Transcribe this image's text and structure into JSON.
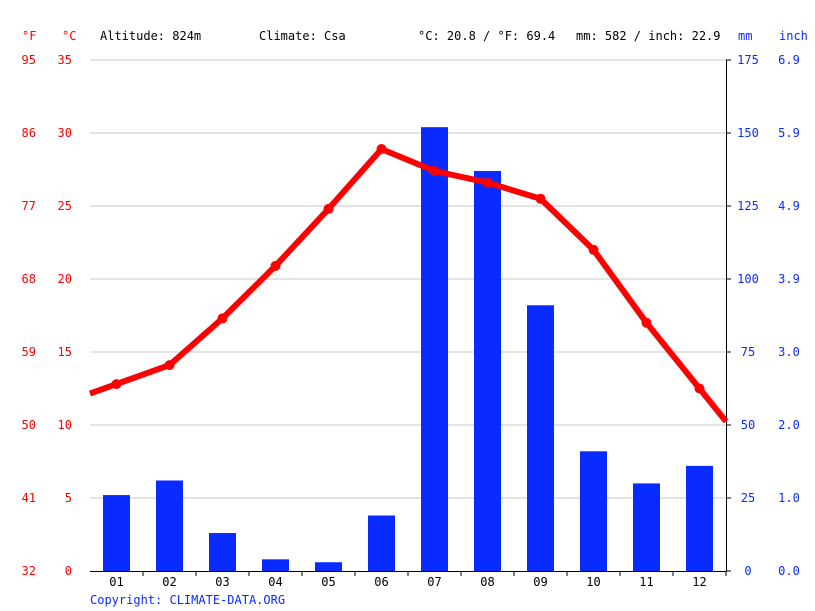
{
  "header": {
    "unit_f": "°F",
    "unit_c": "°C",
    "altitude": "Altitude: 824m",
    "climate": "Climate: Csa",
    "temp_avg": "°C: 20.8 / °F: 69.4",
    "precip_total": "mm: 582 / inch: 22.9",
    "unit_mm": "mm",
    "unit_inch": "inch"
  },
  "footer": {
    "copyright": "Copyright: CLIMATE-DATA.ORG"
  },
  "colors": {
    "temperature": "#ff0000",
    "precipitation": "#0a2bff"
  },
  "chart_data": {
    "type": "bar+line",
    "categories": [
      "01",
      "02",
      "03",
      "04",
      "05",
      "06",
      "07",
      "08",
      "09",
      "10",
      "11",
      "12"
    ],
    "series": [
      {
        "type": "bar",
        "axis": "right",
        "values": [
          26,
          31,
          13,
          4,
          3,
          19,
          152,
          137,
          91,
          41,
          30,
          36
        ]
      },
      {
        "type": "line",
        "axis": "left",
        "values": [
          12.8,
          14.1,
          17.3,
          20.9,
          24.8,
          28.9,
          27.4,
          26.6,
          25.5,
          22.0,
          17.0,
          12.5
        ]
      }
    ],
    "left_axis_c": {
      "ticks": [
        "0",
        "5",
        "10",
        "15",
        "20",
        "25",
        "30",
        "35"
      ],
      "ylim": [
        0,
        35
      ]
    },
    "left_axis_f": {
      "ticks": [
        "32",
        "41",
        "50",
        "59",
        "68",
        "77",
        "86",
        "95"
      ]
    },
    "right_axis_mm": {
      "ticks": [
        "0",
        "25",
        "50",
        "75",
        "100",
        "125",
        "150",
        "175"
      ],
      "ylim": [
        0,
        175
      ]
    },
    "right_axis_inch": {
      "ticks": [
        "0.0",
        "1.0",
        "2.0",
        "3.0",
        "3.9",
        "4.9",
        "5.9",
        "6.9"
      ]
    },
    "grid": true
  }
}
